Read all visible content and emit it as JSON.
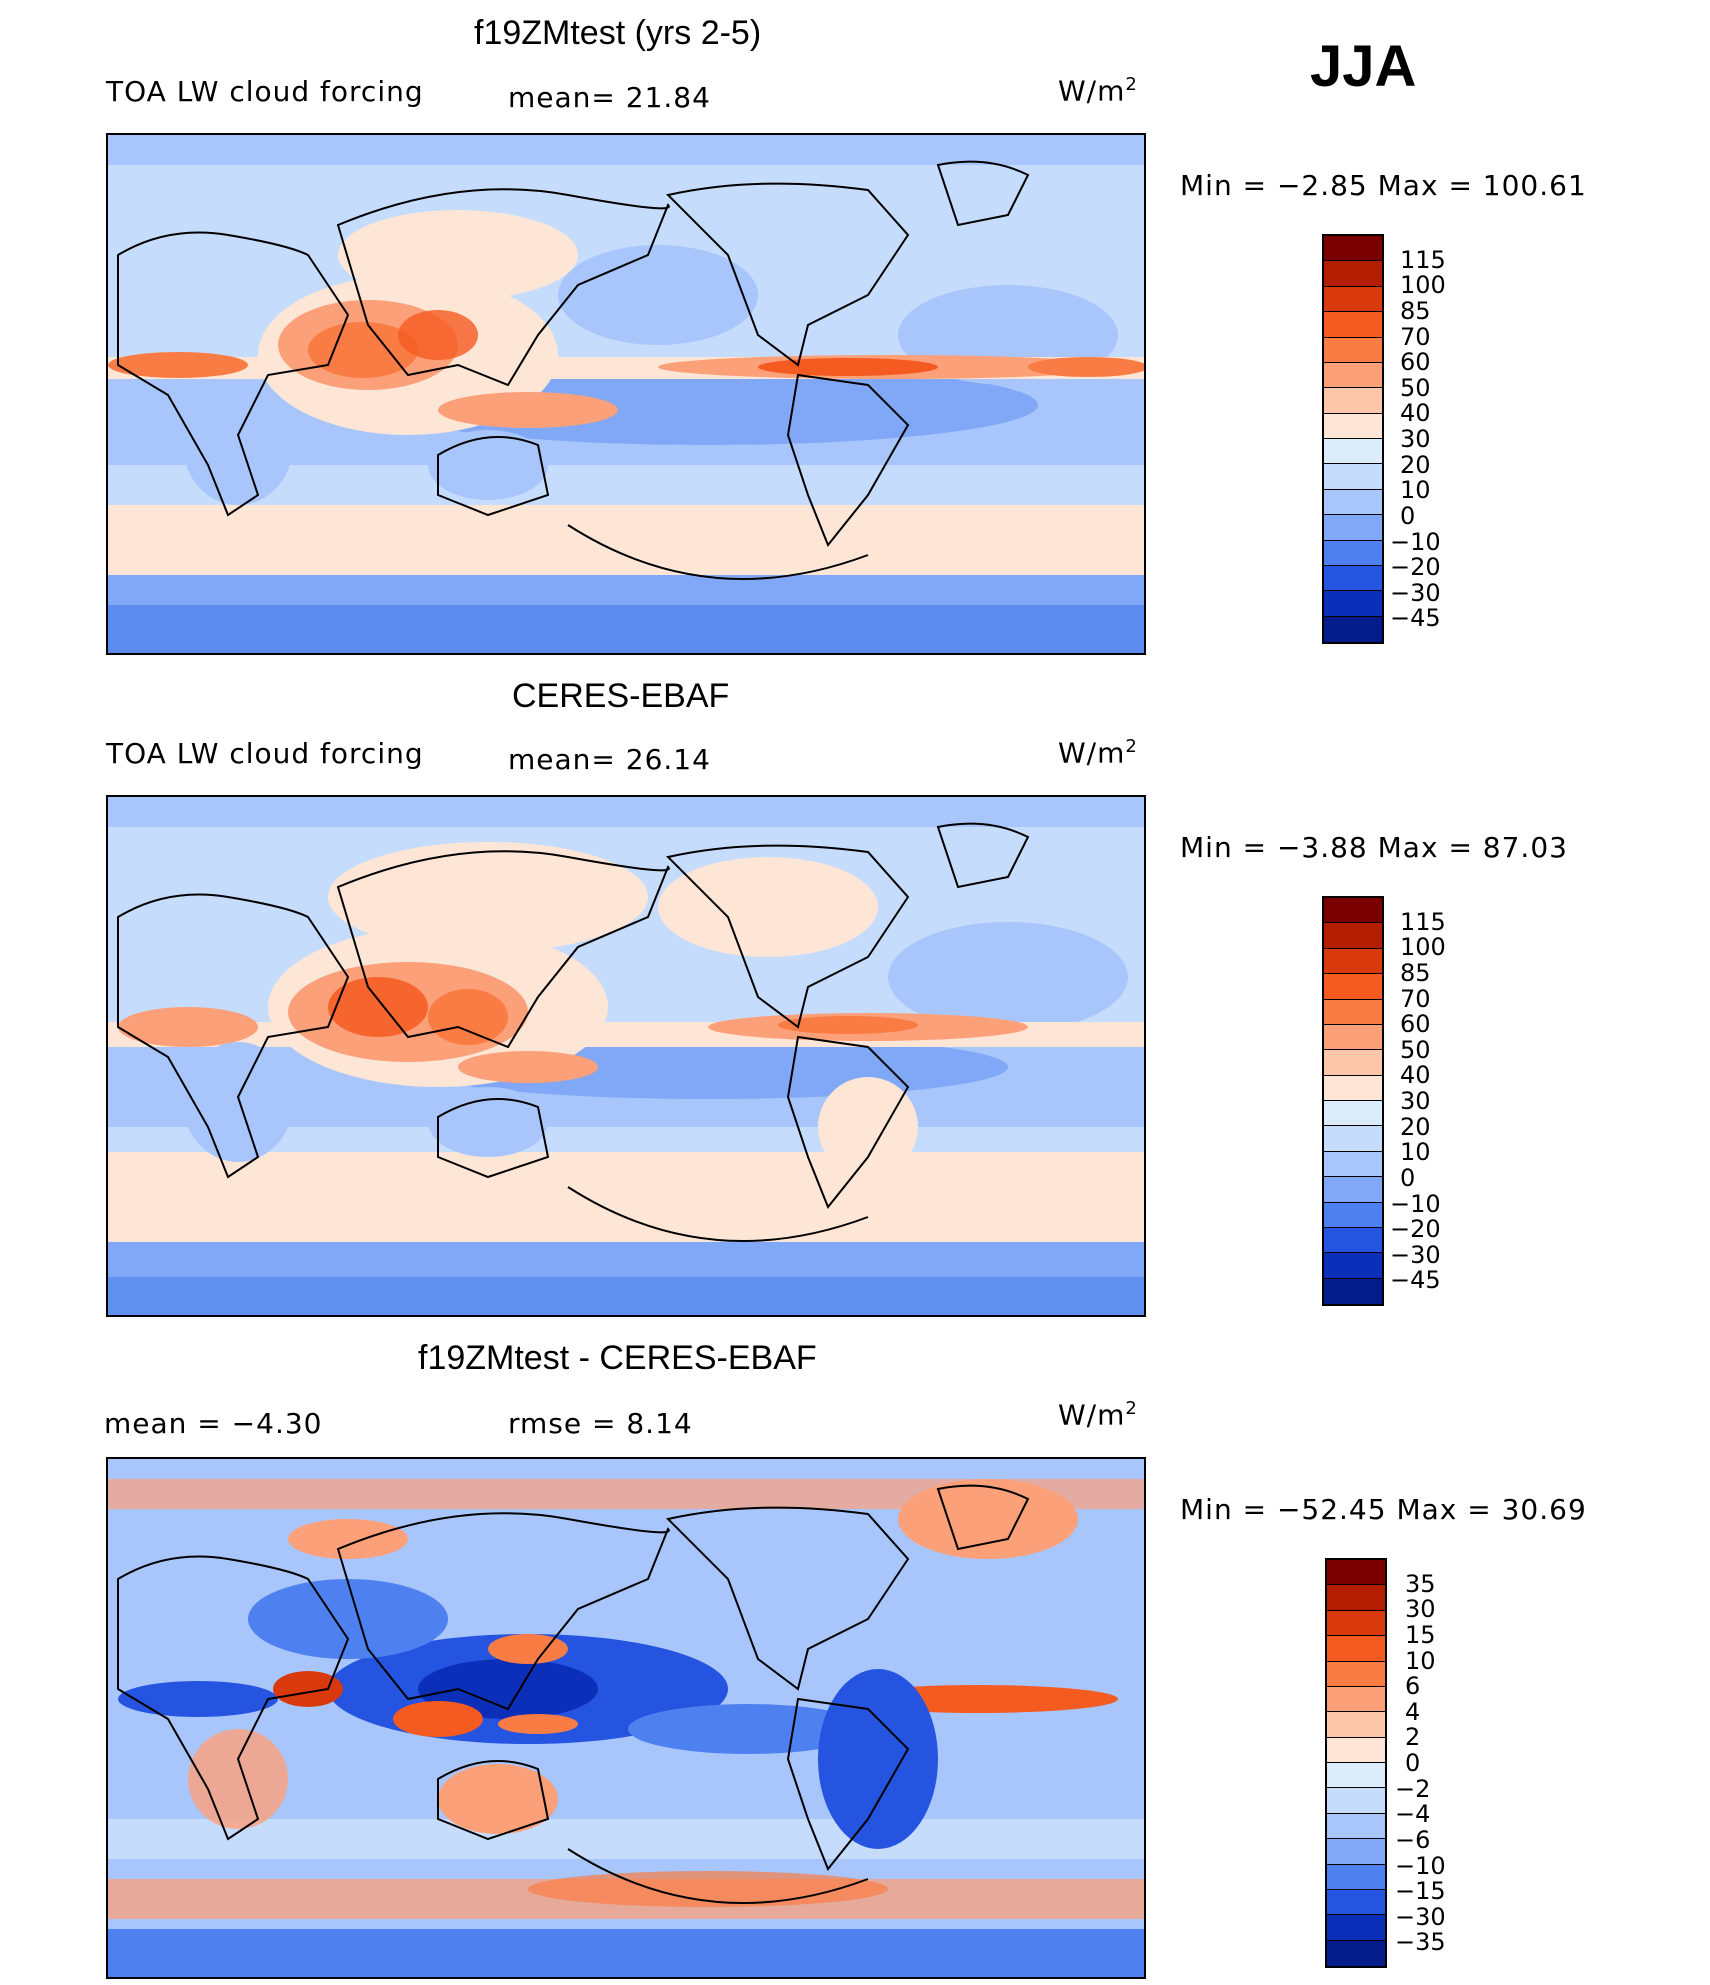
{
  "season": "JJA",
  "panels": [
    {
      "title": "f19ZMtest (yrs 2-5)",
      "left_label": "TOA LW cloud forcing",
      "stat1": "mean=   21.84",
      "units": "W/m",
      "units_sup": "2",
      "minmax": "Min  =    −2.85  Max  =  100.61",
      "levels": [
        "115",
        "100",
        "85",
        "70",
        "60",
        "50",
        "40",
        "30",
        "20",
        "10",
        "0",
        "−10",
        "−20",
        "−30",
        "−45"
      ],
      "colors": [
        "#7a0000",
        "#b31e00",
        "#d93a0d",
        "#f55a20",
        "#fa7c45",
        "#fca07a",
        "#fdc6a8",
        "#fde6d6",
        "#dcecfb",
        "#c6dcfd",
        "#a8c6fb",
        "#80a8f6",
        "#4f80ef",
        "#2454e0",
        "#0b2fb8",
        "#041d8a"
      ]
    },
    {
      "title": "CERES-EBAF",
      "left_label": "TOA LW cloud forcing",
      "stat1": "mean=   26.14",
      "units": "W/m",
      "units_sup": "2",
      "minmax": "Min  =    −3.88  Max  =    87.03",
      "levels": [
        "115",
        "100",
        "85",
        "70",
        "60",
        "50",
        "40",
        "30",
        "20",
        "10",
        "0",
        "−10",
        "−20",
        "−30",
        "−45"
      ],
      "colors": [
        "#7a0000",
        "#b31e00",
        "#d93a0d",
        "#f55a20",
        "#fa7c45",
        "#fca07a",
        "#fdc6a8",
        "#fde6d6",
        "#dcecfb",
        "#c6dcfd",
        "#a8c6fb",
        "#80a8f6",
        "#4f80ef",
        "#2454e0",
        "#0b2fb8",
        "#041d8a"
      ]
    },
    {
      "title": "f19ZMtest - CERES-EBAF",
      "left_label": "mean  =    −4.30",
      "stat1": "rmse  =     8.14",
      "units": "W/m",
      "units_sup": "2",
      "minmax": "Min  =  −52.45  Max  =    30.69",
      "levels": [
        "35",
        "30",
        "15",
        "10",
        "6",
        "4",
        "2",
        "0",
        "−2",
        "−4",
        "−6",
        "−10",
        "−15",
        "−30",
        "−35"
      ],
      "colors": [
        "#7a0000",
        "#b31e00",
        "#d93a0d",
        "#f55a20",
        "#fa7c45",
        "#fca07a",
        "#fdc6a8",
        "#fde6d6",
        "#dcecfb",
        "#c6dcfd",
        "#a8c6fb",
        "#80a8f6",
        "#4f80ef",
        "#2454e0",
        "#0b2fb8",
        "#041d8a"
      ]
    }
  ]
}
